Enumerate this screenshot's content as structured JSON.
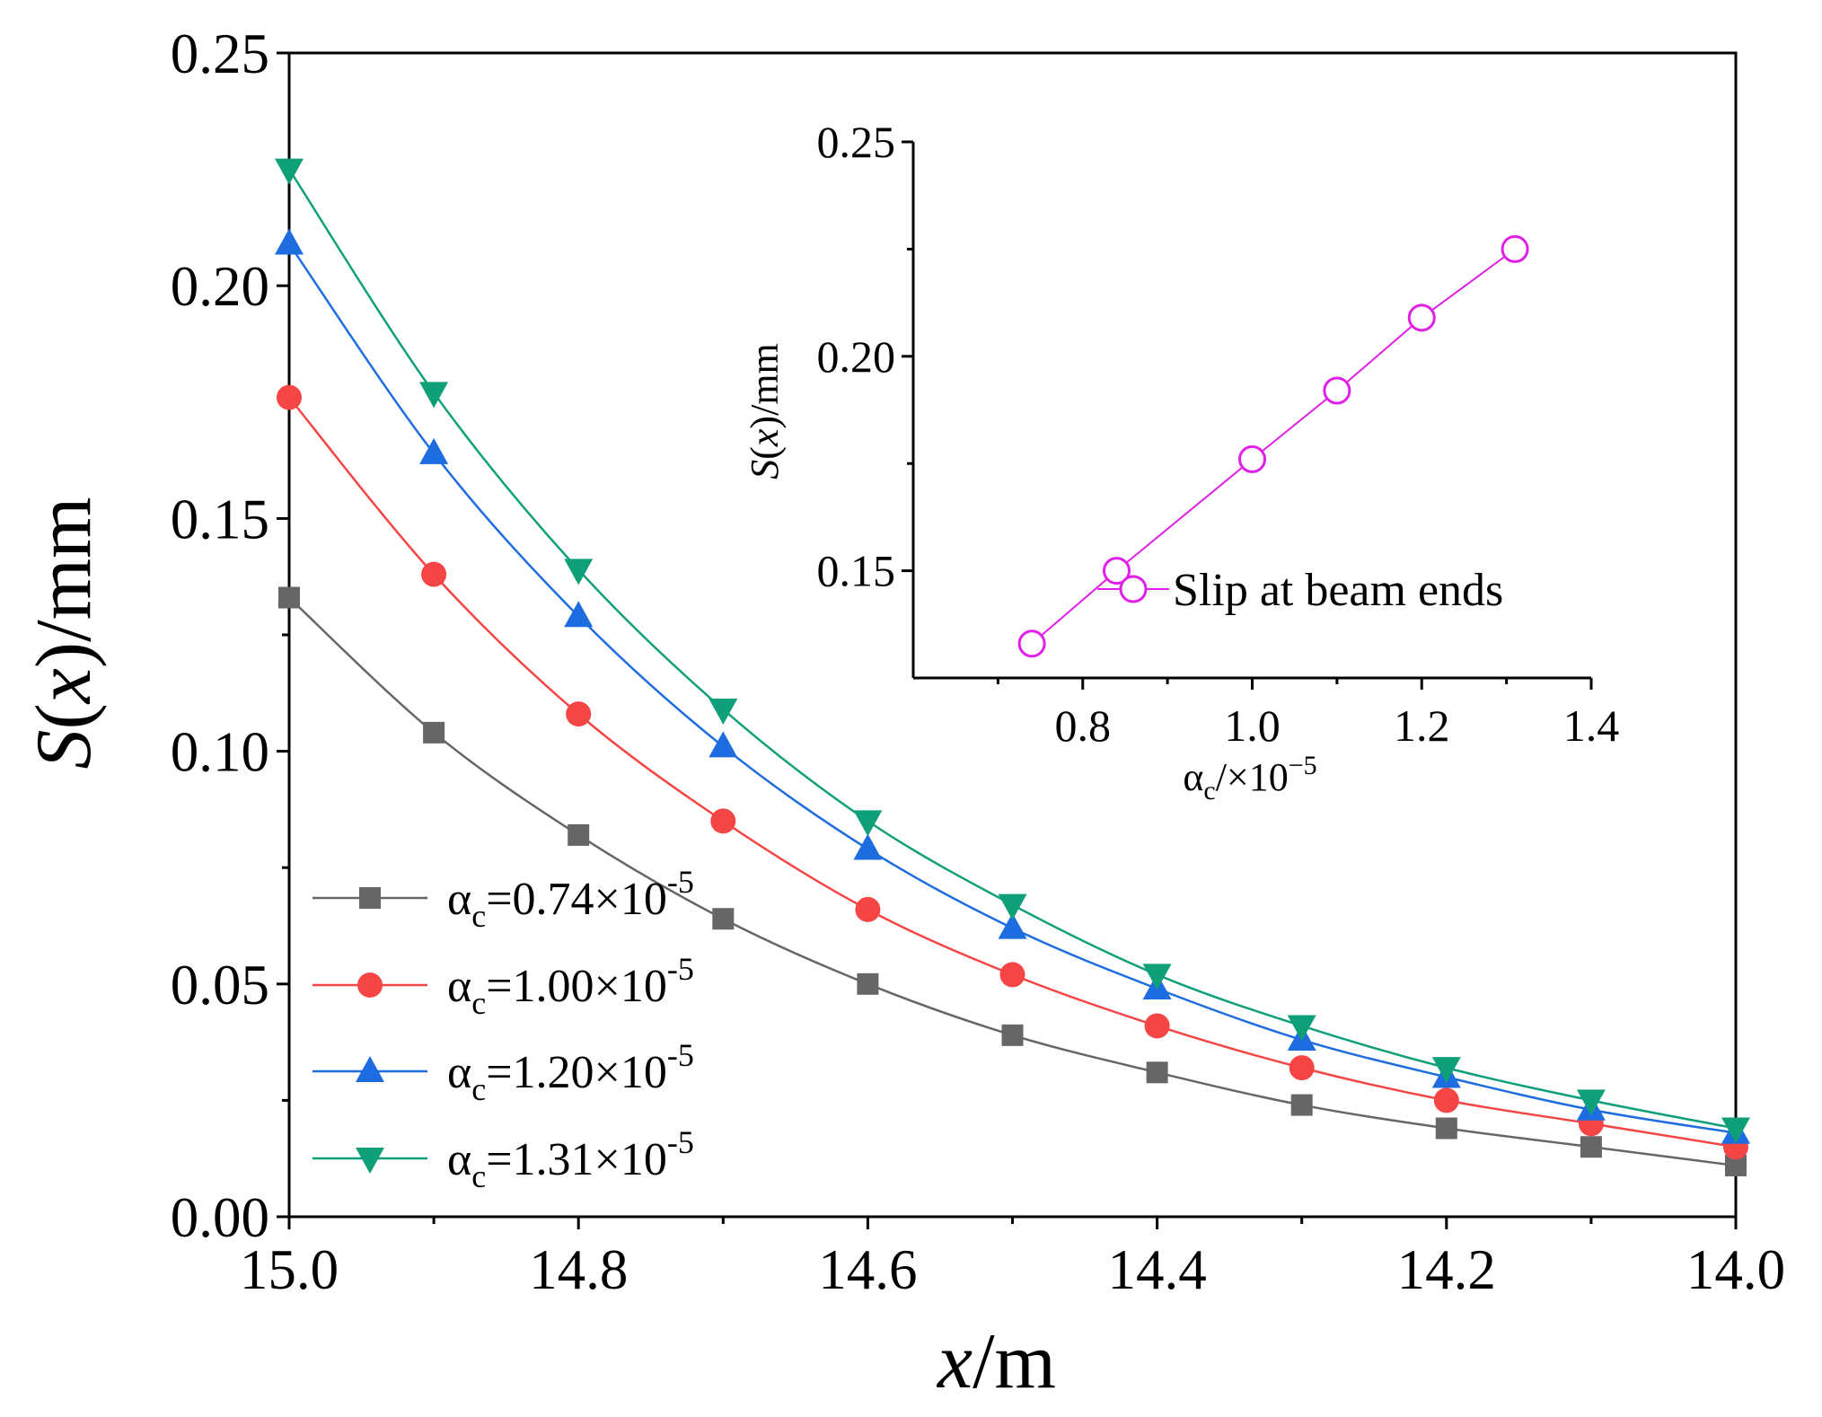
{
  "chart_data": [
    {
      "type": "line",
      "xlabel": "x/m",
      "ylabel": "S(x)/mm",
      "xlim": [
        15.0,
        14.0
      ],
      "ylim": [
        0.0,
        0.25
      ],
      "xticks": [
        "15.0",
        "14.8",
        "14.6",
        "14.4",
        "14.2",
        "14.0"
      ],
      "yticks": [
        "0.00",
        "0.05",
        "0.10",
        "0.15",
        "0.20",
        "0.25"
      ],
      "x": [
        15.0,
        14.9,
        14.8,
        14.7,
        14.6,
        14.5,
        14.4,
        14.3,
        14.2,
        14.1,
        14.0
      ],
      "series": [
        {
          "name": "αc=0.74×10-5",
          "label_main": "=0.74×10",
          "exponent": "-5",
          "color": "#666666",
          "marker": "square",
          "values": [
            0.133,
            0.104,
            0.082,
            0.064,
            0.05,
            0.039,
            0.031,
            0.024,
            0.019,
            0.015,
            0.011
          ]
        },
        {
          "name": "αc=1.00×10-5",
          "label_main": "=1.00×10",
          "exponent": "-5",
          "color": "#f54545",
          "marker": "circle",
          "values": [
            0.176,
            0.138,
            0.108,
            0.085,
            0.066,
            0.052,
            0.041,
            0.032,
            0.025,
            0.02,
            0.015
          ]
        },
        {
          "name": "αc=1.20×10-5",
          "label_main": "=1.20×10",
          "exponent": "-5",
          "color": "#1e6de0",
          "marker": "triangle-up",
          "values": [
            0.209,
            0.164,
            0.129,
            0.101,
            0.079,
            0.062,
            0.049,
            0.038,
            0.03,
            0.023,
            0.018
          ]
        },
        {
          "name": "αc=1.31×10-5",
          "label_main": "=1.31×10",
          "exponent": "-5",
          "color": "#0fa07a",
          "marker": "triangle-down",
          "values": [
            0.225,
            0.177,
            0.139,
            0.109,
            0.085,
            0.067,
            0.052,
            0.041,
            0.032,
            0.025,
            0.019
          ]
        }
      ],
      "legend_position": "bottom-left"
    },
    {
      "type": "line",
      "xlabel": "αc/×10−5",
      "ylabel": "S(x)/mm",
      "xlim": [
        0.6,
        1.4
      ],
      "ylim": [
        0.125,
        0.25
      ],
      "xticks": [
        "0.8",
        "1.0",
        "1.2",
        "1.4"
      ],
      "yticks": [
        "0.15",
        "0.20",
        "0.25"
      ],
      "series": [
        {
          "name": "Slip at beam ends",
          "color": "#e020e8",
          "marker": "open-circle",
          "x": [
            0.74,
            0.84,
            1.0,
            1.1,
            1.2,
            1.31
          ],
          "values": [
            0.133,
            0.15,
            0.176,
            0.192,
            0.209,
            0.225
          ]
        }
      ],
      "legend_position": "center-right"
    }
  ]
}
